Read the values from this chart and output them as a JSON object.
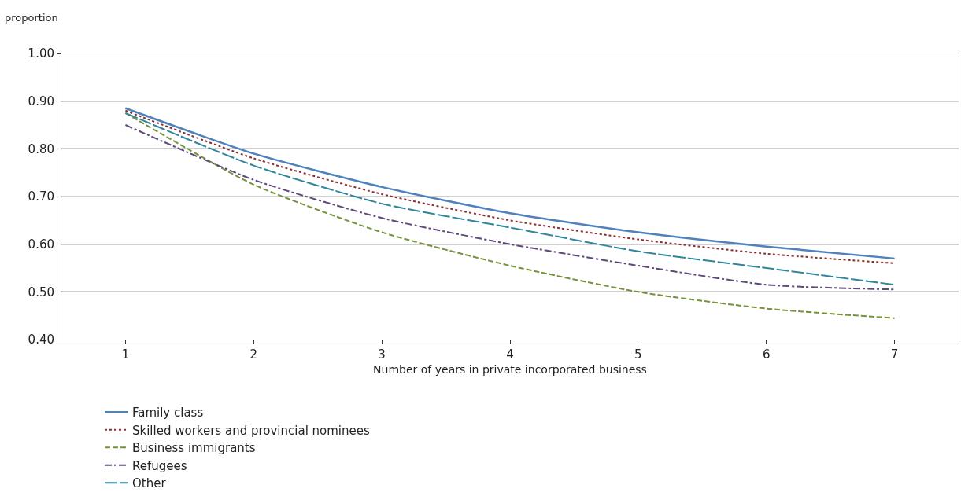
{
  "chart_data": {
    "type": "line",
    "xlabel": "Number of years in private incorporated business",
    "ylabel": "proportion",
    "x": [
      1,
      2,
      3,
      4,
      5,
      6,
      7
    ],
    "xlim": [
      0.5,
      7.5
    ],
    "xticks": [
      1,
      2,
      3,
      4,
      5,
      6,
      7
    ],
    "ylim": [
      0.4,
      1.0
    ],
    "yticks": [
      {
        "value": 0.4,
        "label": "0.40"
      },
      {
        "value": 0.5,
        "label": "0.50"
      },
      {
        "value": 0.6,
        "label": "0.60"
      },
      {
        "value": 0.7,
        "label": "0.70"
      },
      {
        "value": 0.8,
        "label": "0.80"
      },
      {
        "value": 0.9,
        "label": "0.90"
      },
      {
        "value": 1.0,
        "label": "1.00"
      }
    ],
    "grid": "y",
    "legend": "bottom",
    "marker": "none",
    "series": [
      {
        "name": "Family class",
        "color": "#4f81bd",
        "line_style": "solid",
        "values": [
          0.885,
          0.79,
          0.72,
          0.665,
          0.625,
          0.595,
          0.57
        ]
      },
      {
        "name": "Skilled workers and provincial nominees",
        "color": "#8b2e2e",
        "line_style": "dotted",
        "values": [
          0.88,
          0.78,
          0.705,
          0.65,
          0.61,
          0.58,
          0.56
        ]
      },
      {
        "name": "Business immigrants",
        "color": "#76923c",
        "line_style": "dashed",
        "values": [
          0.875,
          0.725,
          0.625,
          0.555,
          0.5,
          0.465,
          0.445
        ]
      },
      {
        "name": "Refugees",
        "color": "#5f497a",
        "line_style": "dashdot",
        "values": [
          0.85,
          0.735,
          0.655,
          0.6,
          0.555,
          0.515,
          0.505
        ]
      },
      {
        "name": "Other",
        "color": "#31859c",
        "line_style": "longdash",
        "values": [
          0.875,
          0.765,
          0.685,
          0.635,
          0.585,
          0.55,
          0.515
        ]
      }
    ]
  }
}
